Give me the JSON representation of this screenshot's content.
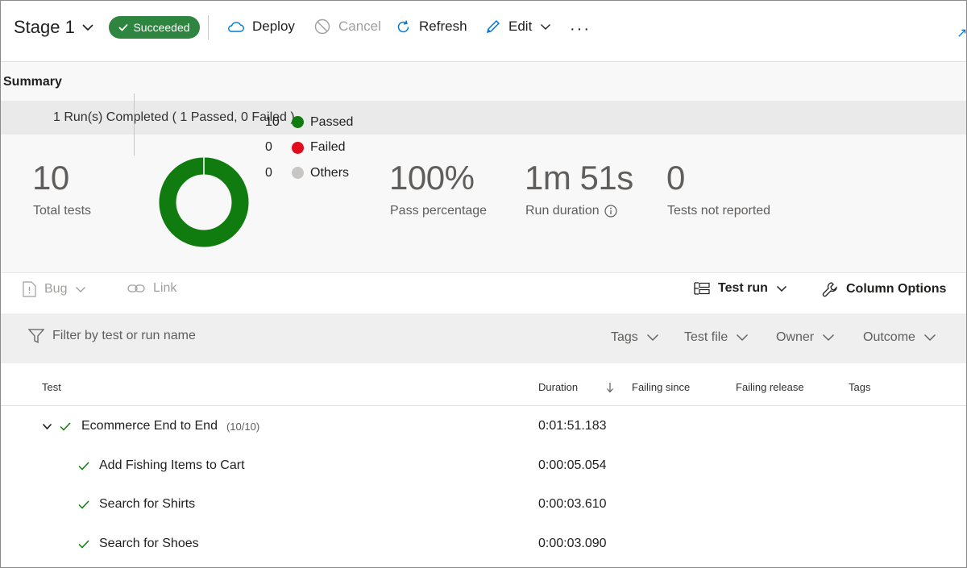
{
  "toolbar": {
    "stage_title": "Stage 1",
    "status_badge": "Succeeded",
    "deploy": "Deploy",
    "cancel": "Cancel",
    "refresh": "Refresh",
    "edit": "Edit",
    "more": "···"
  },
  "summary": {
    "title": "Summary",
    "runs_completed": "1 Run(s) Completed ( 1 Passed, 0 Failed )",
    "total_tests_value": "10",
    "total_tests_label": "Total tests",
    "legend": [
      {
        "count": "10",
        "label": "Passed",
        "color": "#107c10"
      },
      {
        "count": "0",
        "label": "Failed",
        "color": "#e00b1c"
      },
      {
        "count": "0",
        "label": "Others",
        "color": "#c8c6c4"
      }
    ],
    "pass_pct_value": "100%",
    "pass_pct_label": "Pass percentage",
    "duration_value": "1m 51s",
    "duration_label": "Run duration",
    "not_reported_value": "0",
    "not_reported_label": "Tests not reported"
  },
  "actions": {
    "bug": "Bug",
    "link": "Link",
    "test_run": "Test run",
    "column_options": "Column Options"
  },
  "filter": {
    "placeholder": "Filter by test or run name",
    "tags": "Tags",
    "test_file": "Test file",
    "owner": "Owner",
    "outcome": "Outcome"
  },
  "table": {
    "headers": {
      "test": "Test",
      "duration": "Duration",
      "failing_since": "Failing since",
      "failing_release": "Failing release",
      "tags": "Tags"
    },
    "group": {
      "name": "Ecommerce End to End",
      "count": "(10/10)",
      "duration": "0:01:51.183"
    },
    "rows": [
      {
        "name": "Add Fishing Items to Cart",
        "duration": "0:00:05.054"
      },
      {
        "name": "Search for Shirts",
        "duration": "0:00:03.610"
      },
      {
        "name": "Search for Shoes",
        "duration": "0:00:03.090"
      }
    ]
  },
  "donut_pass_fraction": 1.0,
  "colors": {
    "success_badge": "#2e8540",
    "passed": "#107c10",
    "accent": "#0078d4"
  }
}
